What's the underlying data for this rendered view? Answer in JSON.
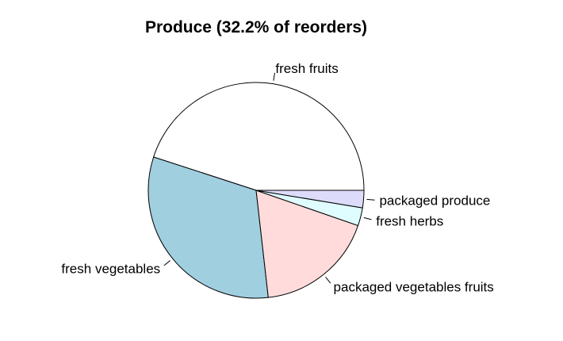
{
  "chart_data": {
    "type": "pie",
    "title": "Produce (32.2% of reorders)",
    "start_angle_deg": 0,
    "direction": "counterclockwise",
    "slices": [
      {
        "label": "fresh fruits",
        "value": 45.0,
        "color": "#ffffff"
      },
      {
        "label": "fresh vegetables",
        "value": 31.8,
        "color": "#a0cfe0"
      },
      {
        "label": "packaged vegetables fruits",
        "value": 17.9,
        "color": "#ffdcdb"
      },
      {
        "label": "fresh herbs",
        "value": 2.7,
        "color": "#dffdff"
      },
      {
        "label": "packaged produce",
        "value": 2.6,
        "color": "#dcdcfa"
      }
    ]
  }
}
